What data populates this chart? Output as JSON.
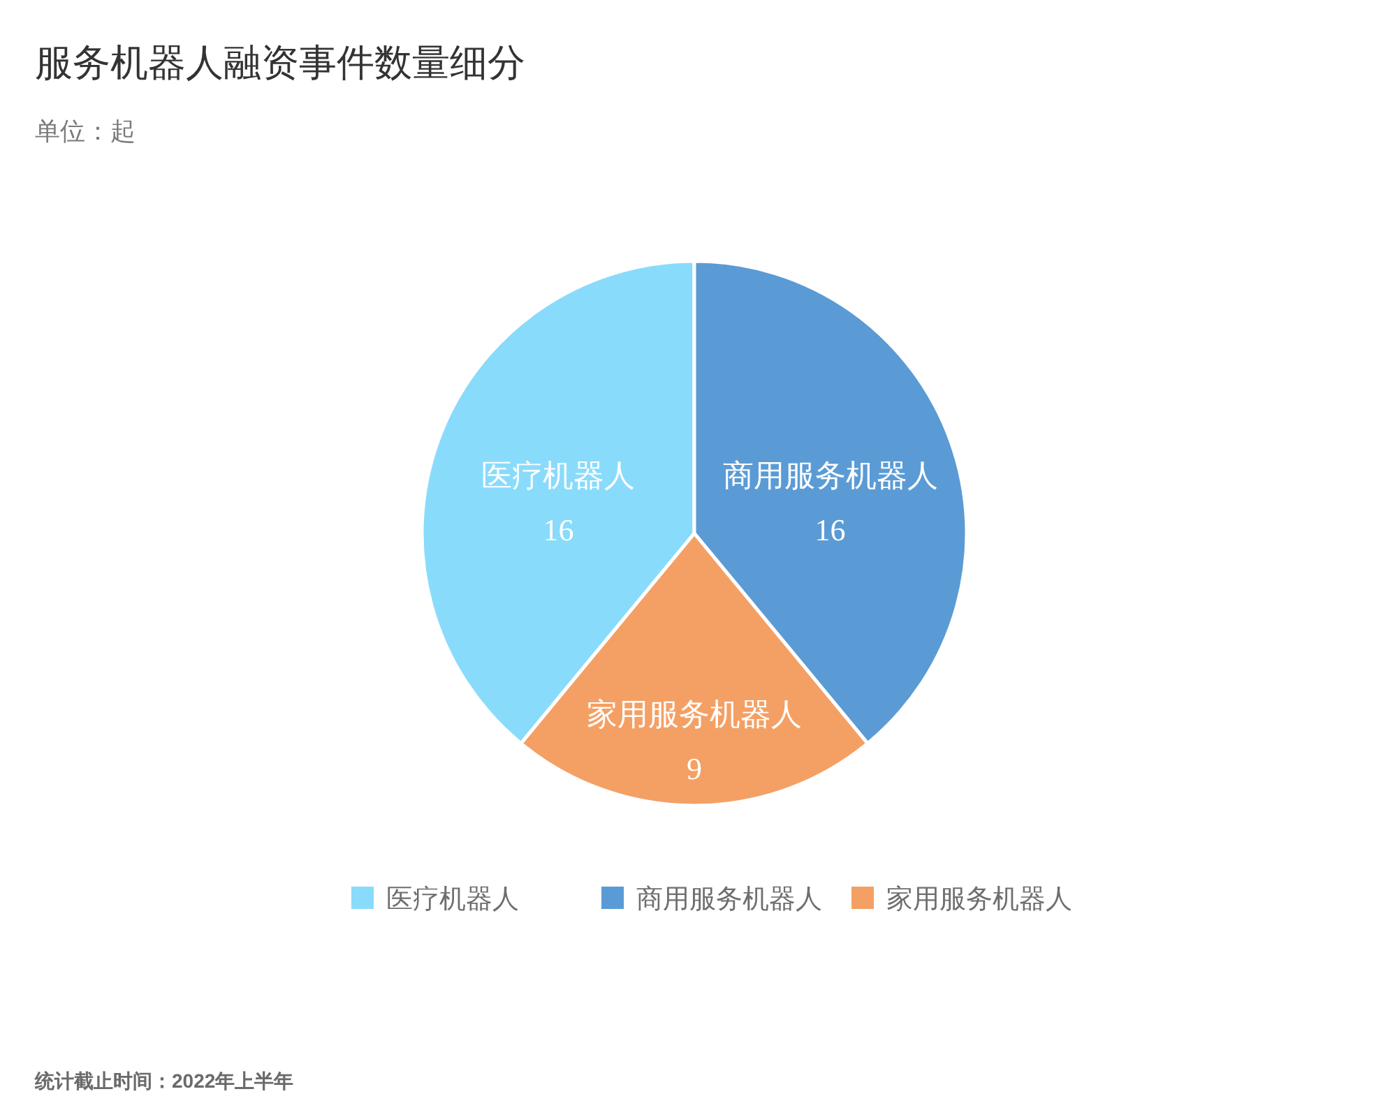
{
  "chart_data": {
    "type": "pie",
    "title": "服务机器人融资事件数量细分",
    "subtitle": "单位：起",
    "categories": [
      "医疗机器人",
      "商用服务机器人",
      "家用服务机器人"
    ],
    "values": [
      16,
      16,
      9
    ],
    "colors": [
      "#89dbfb",
      "#5b9bd5",
      "#f4a064"
    ],
    "data_labels": true,
    "legend": "bottom",
    "annotations": [
      "统计截止时间：2022年上半年"
    ]
  }
}
